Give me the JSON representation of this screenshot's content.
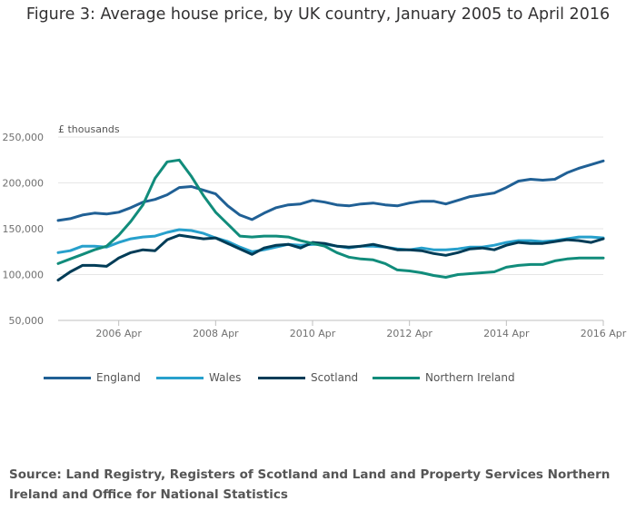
{
  "title": "Figure 3: Average house price, by UK country, January 2005 to April 2016",
  "source": "Source: Land Registry, Registers of Scotland and Land and Property Services Northern Ireland and Office for National Statistics",
  "chart_data": {
    "type": "line",
    "title": "Figure 3: Average house price, by UK country, January 2005 to April 2016",
    "ylabel": "£ thousands",
    "xlabel": "",
    "ylim": [
      50000,
      250000
    ],
    "yticks": [
      50000,
      100000,
      150000,
      200000,
      250000
    ],
    "ytick_labels": [
      "50,000",
      "100,000",
      "150,000",
      "200,000",
      "250,000"
    ],
    "x_range": [
      2005.0,
      2016.25
    ],
    "xticks": [
      2006.25,
      2008.25,
      2010.25,
      2012.25,
      2014.25,
      2016.25
    ],
    "xtick_labels": [
      "2006 Apr",
      "2008 Apr",
      "2010 Apr",
      "2012 Apr",
      "2014 Apr",
      "2016 Apr"
    ],
    "grid": true,
    "legend_position": "bottom-left",
    "series": [
      {
        "name": "England",
        "color": "#206095",
        "x": [
          2005.0,
          2005.25,
          2005.5,
          2005.75,
          2006.0,
          2006.25,
          2006.5,
          2006.75,
          2007.0,
          2007.25,
          2007.5,
          2007.75,
          2008.0,
          2008.25,
          2008.5,
          2008.75,
          2009.0,
          2009.25,
          2009.5,
          2009.75,
          2010.0,
          2010.25,
          2010.5,
          2010.75,
          2011.0,
          2011.25,
          2011.5,
          2011.75,
          2012.0,
          2012.25,
          2012.5,
          2012.75,
          2013.0,
          2013.25,
          2013.5,
          2013.75,
          2014.0,
          2014.25,
          2014.5,
          2014.75,
          2015.0,
          2015.25,
          2015.5,
          2015.75,
          2016.0,
          2016.25
        ],
        "values": [
          159000,
          161000,
          165000,
          167000,
          166000,
          168000,
          173000,
          179000,
          182000,
          187000,
          195000,
          196000,
          192000,
          188000,
          175000,
          165000,
          160000,
          167000,
          173000,
          176000,
          177000,
          181000,
          179000,
          176000,
          175000,
          177000,
          178000,
          176000,
          175000,
          178000,
          180000,
          180000,
          177000,
          181000,
          185000,
          187000,
          189000,
          195000,
          202000,
          204000,
          203000,
          204000,
          211000,
          216000,
          220000,
          224000
        ]
      },
      {
        "name": "Wales",
        "color": "#27a0cc",
        "x": [
          2005.0,
          2005.25,
          2005.5,
          2005.75,
          2006.0,
          2006.25,
          2006.5,
          2006.75,
          2007.0,
          2007.25,
          2007.5,
          2007.75,
          2008.0,
          2008.25,
          2008.5,
          2008.75,
          2009.0,
          2009.25,
          2009.5,
          2009.75,
          2010.0,
          2010.25,
          2010.5,
          2010.75,
          2011.0,
          2011.25,
          2011.5,
          2011.75,
          2012.0,
          2012.25,
          2012.5,
          2012.75,
          2013.0,
          2013.25,
          2013.5,
          2013.75,
          2014.0,
          2014.25,
          2014.5,
          2014.75,
          2015.0,
          2015.25,
          2015.5,
          2015.75,
          2016.0,
          2016.25
        ],
        "values": [
          124000,
          126000,
          131000,
          131000,
          130000,
          135000,
          139000,
          141000,
          142000,
          146000,
          149000,
          148000,
          145000,
          140000,
          136000,
          130000,
          125000,
          127000,
          130000,
          133000,
          132000,
          133000,
          133000,
          131000,
          129000,
          131000,
          131000,
          130000,
          128000,
          127000,
          129000,
          127000,
          127000,
          128000,
          130000,
          130000,
          132000,
          135000,
          137000,
          137000,
          136000,
          137000,
          139000,
          141000,
          141000,
          140000
        ]
      },
      {
        "name": "Scotland",
        "color": "#003c57",
        "x": [
          2005.0,
          2005.25,
          2005.5,
          2005.75,
          2006.0,
          2006.25,
          2006.5,
          2006.75,
          2007.0,
          2007.25,
          2007.5,
          2007.75,
          2008.0,
          2008.25,
          2008.5,
          2008.75,
          2009.0,
          2009.25,
          2009.5,
          2009.75,
          2010.0,
          2010.25,
          2010.5,
          2010.75,
          2011.0,
          2011.25,
          2011.5,
          2011.75,
          2012.0,
          2012.25,
          2012.5,
          2012.75,
          2013.0,
          2013.25,
          2013.5,
          2013.75,
          2014.0,
          2014.25,
          2014.5,
          2014.75,
          2015.0,
          2015.25,
          2015.5,
          2015.75,
          2016.0,
          2016.25
        ],
        "values": [
          94000,
          103000,
          110000,
          110000,
          109000,
          118000,
          124000,
          127000,
          126000,
          138000,
          143000,
          141000,
          139000,
          140000,
          134000,
          128000,
          122000,
          129000,
          132000,
          133000,
          129000,
          135000,
          134000,
          131000,
          130000,
          131000,
          133000,
          130000,
          127000,
          127000,
          126000,
          123000,
          121000,
          124000,
          128000,
          129000,
          127000,
          132000,
          135000,
          134000,
          134000,
          136000,
          138000,
          137000,
          135000,
          139000
        ]
      },
      {
        "name": "Northern Ireland",
        "color": "#118c7b",
        "x": [
          2005.0,
          2005.25,
          2005.5,
          2005.75,
          2006.0,
          2006.25,
          2006.5,
          2006.75,
          2007.0,
          2007.25,
          2007.5,
          2007.75,
          2008.0,
          2008.25,
          2008.5,
          2008.75,
          2009.0,
          2009.25,
          2009.5,
          2009.75,
          2010.0,
          2010.25,
          2010.5,
          2010.75,
          2011.0,
          2011.25,
          2011.5,
          2011.75,
          2012.0,
          2012.25,
          2012.5,
          2012.75,
          2013.0,
          2013.25,
          2013.5,
          2013.75,
          2014.0,
          2014.25,
          2014.5,
          2014.75,
          2015.0,
          2015.25,
          2015.5,
          2015.75,
          2016.0,
          2016.25
        ],
        "values": [
          112000,
          117000,
          122000,
          127000,
          131000,
          143000,
          158000,
          176000,
          205000,
          223000,
          225000,
          207000,
          186000,
          168000,
          155000,
          142000,
          141000,
          142000,
          142000,
          141000,
          137000,
          134000,
          131000,
          124000,
          119000,
          117000,
          116000,
          112000,
          105000,
          104000,
          102000,
          99000,
          97000,
          100000,
          101000,
          102000,
          103000,
          108000,
          110000,
          111000,
          111000,
          115000,
          117000,
          118000,
          118000,
          118000
        ]
      }
    ]
  }
}
